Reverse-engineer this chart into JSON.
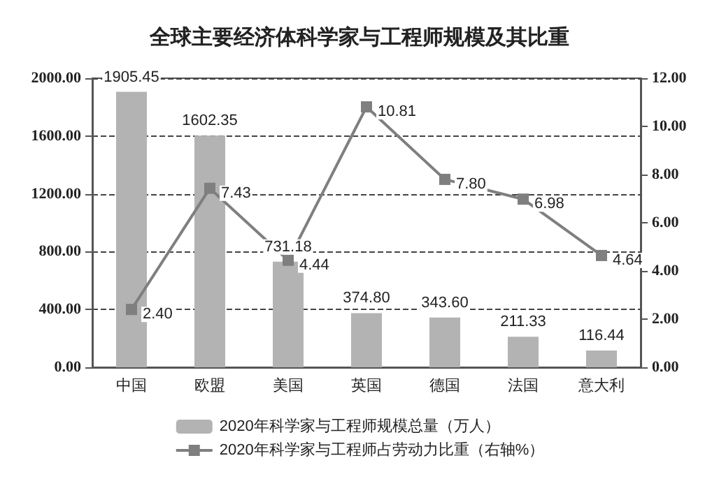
{
  "chart_data": {
    "type": "bar",
    "title": "全球主要经济体科学家与工程师规模及其比重",
    "categories": [
      "中国",
      "欧盟",
      "美国",
      "英国",
      "德国",
      "法国",
      "意大利"
    ],
    "series": [
      {
        "name": "2020年科学家与工程师规模总量（万人）",
        "color": "#b3b3b3",
        "values": [
          1905.45,
          1602.35,
          731.18,
          374.8,
          343.6,
          211.33,
          116.44
        ],
        "value_labels": [
          "1905.45",
          "1602.35",
          "731.18",
          "374.80",
          "343.60",
          "211.33",
          "116.44"
        ]
      },
      {
        "name": "2020年科学家与工程师占劳动力比重（右轴%）",
        "type": "line",
        "axis": "y2",
        "color": "#7f7f7f",
        "marker": "square",
        "values": [
          2.4,
          7.43,
          4.44,
          10.81,
          7.8,
          6.98,
          4.64
        ],
        "value_labels": [
          "2.40",
          "7.43",
          "4.44",
          "10.81",
          "7.80",
          "6.98",
          "4.64"
        ]
      }
    ],
    "ylim": [
      0,
      2000
    ],
    "yticks": [
      {
        "value": 0,
        "label": "0.00"
      },
      {
        "value": 400,
        "label": "400.00"
      },
      {
        "value": 800,
        "label": "800.00"
      },
      {
        "value": 1200,
        "label": "1200.00"
      },
      {
        "value": 1600,
        "label": "1600.00"
      },
      {
        "value": 2000,
        "label": "2000.00"
      }
    ],
    "y2lim": [
      0,
      12
    ],
    "y2ticks": [
      {
        "value": 0,
        "label": "0.00"
      },
      {
        "value": 2,
        "label": "2.00"
      },
      {
        "value": 4,
        "label": "4.00"
      },
      {
        "value": 6,
        "label": "6.00"
      },
      {
        "value": 8,
        "label": "8.00"
      },
      {
        "value": 10,
        "label": "10.00"
      },
      {
        "value": 12,
        "label": "12.00"
      }
    ],
    "grid": "y",
    "legend": "bottom",
    "line_style": "solid"
  }
}
